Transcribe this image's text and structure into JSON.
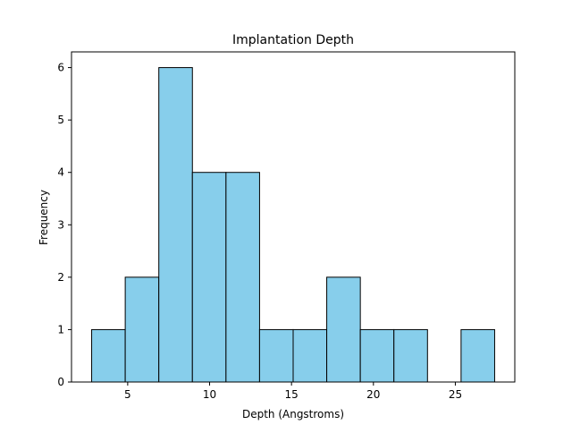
{
  "chart_data": {
    "type": "bar",
    "title": "Implantation Depth",
    "xlabel": "Depth (Angstroms)",
    "ylabel": "Frequency",
    "bins": [
      {
        "x0": 2.8,
        "x1": 4.85,
        "count": 1
      },
      {
        "x0": 4.85,
        "x1": 6.9,
        "count": 2
      },
      {
        "x0": 6.9,
        "x1": 8.95,
        "count": 6
      },
      {
        "x0": 8.95,
        "x1": 11.0,
        "count": 4
      },
      {
        "x0": 11.0,
        "x1": 13.05,
        "count": 4
      },
      {
        "x0": 13.05,
        "x1": 15.1,
        "count": 1
      },
      {
        "x0": 15.1,
        "x1": 17.15,
        "count": 1
      },
      {
        "x0": 17.15,
        "x1": 19.2,
        "count": 2
      },
      {
        "x0": 19.2,
        "x1": 21.25,
        "count": 1
      },
      {
        "x0": 21.25,
        "x1": 23.3,
        "count": 1
      },
      {
        "x0": 23.3,
        "x1": 25.35,
        "count": 0
      },
      {
        "x0": 25.35,
        "x1": 27.4,
        "count": 1
      }
    ],
    "xlim": [
      1.57,
      28.63
    ],
    "ylim": [
      0,
      6.3
    ],
    "xticks": [
      5,
      10,
      15,
      20,
      25
    ],
    "yticks": [
      0,
      1,
      2,
      3,
      4,
      5,
      6
    ],
    "bar_color": "#87CEEB",
    "edge_color": "#000000",
    "grid": false,
    "legend": false
  }
}
